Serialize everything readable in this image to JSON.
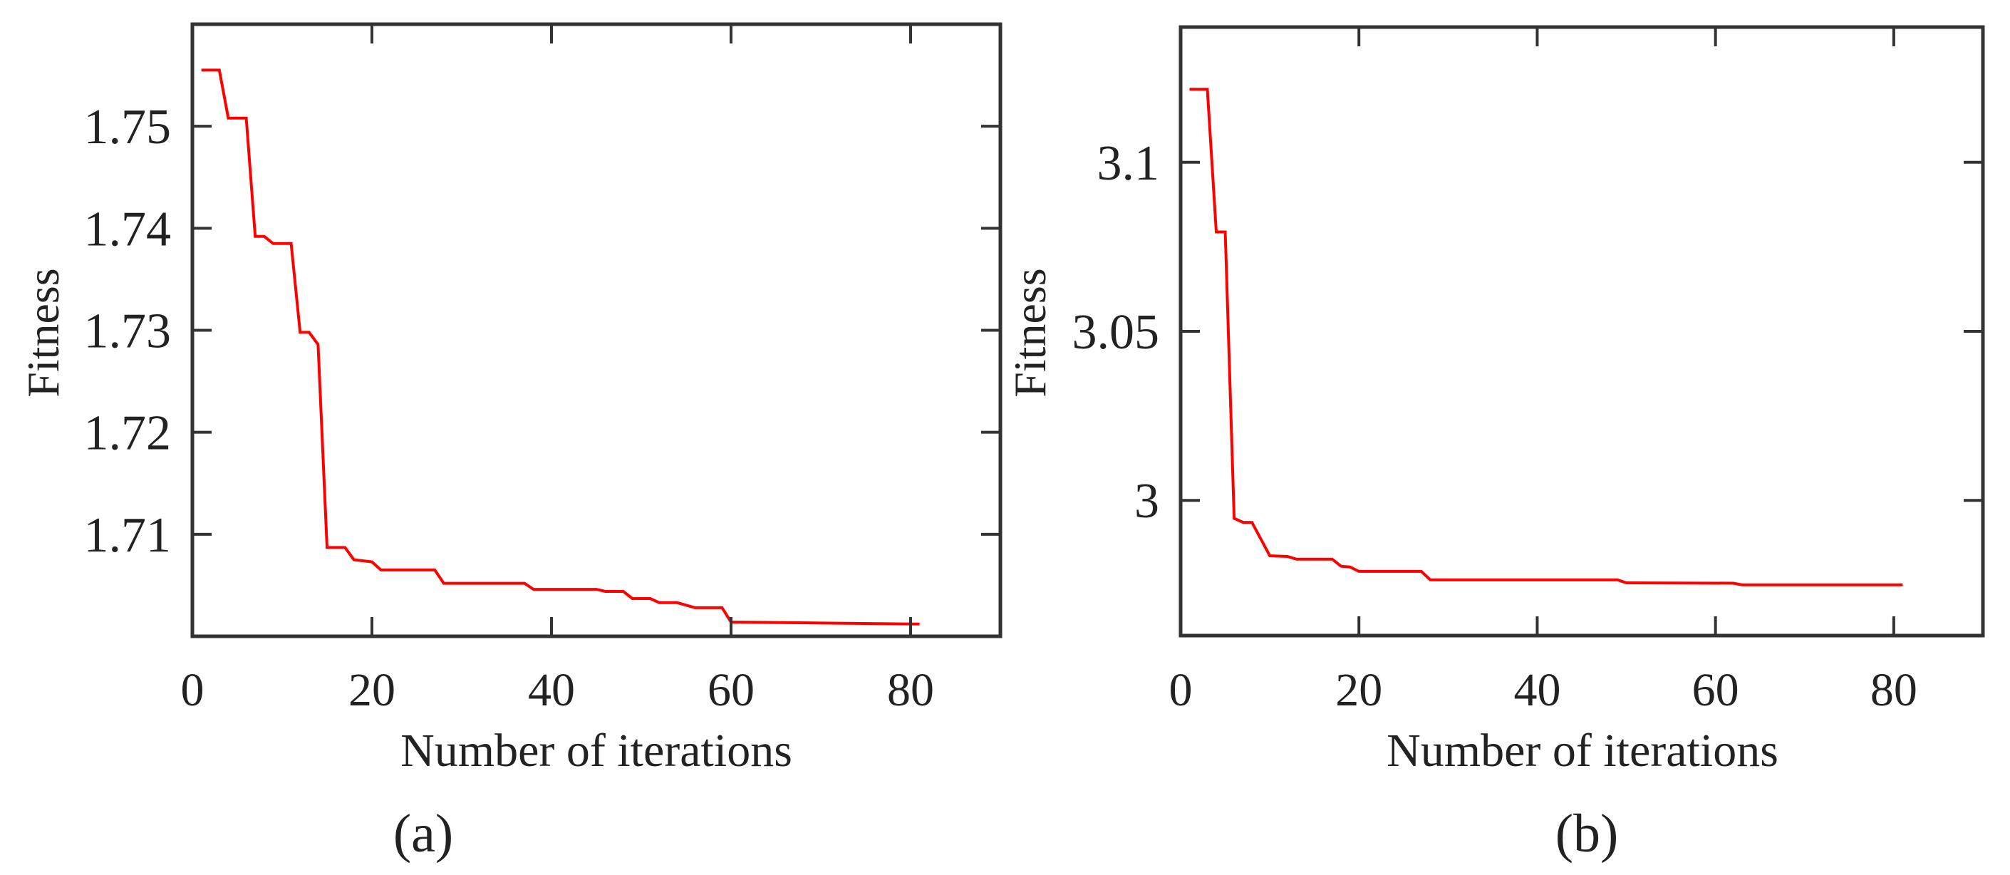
{
  "figure": {
    "panels": [
      {
        "id": "a",
        "caption": "(a)",
        "xlabel": "Number of iterations",
        "ylabel": "Fitness",
        "xticks": [
          "0",
          "20",
          "40",
          "60",
          "80"
        ],
        "yticks": [
          "1.71",
          "1.72",
          "1.73",
          "1.74",
          "1.75"
        ]
      },
      {
        "id": "b",
        "caption": "(b)",
        "xlabel": "Number of iterations",
        "ylabel": "Fitness",
        "xticks": [
          "0",
          "20",
          "40",
          "60",
          "80"
        ],
        "yticks": [
          "3",
          "3.05",
          "3.1"
        ]
      }
    ],
    "line_color": "#ff0000",
    "axis_color": "#333333"
  },
  "chart_data": [
    {
      "type": "line",
      "title": "(a)",
      "xlabel": "Number of iterations",
      "ylabel": "Fitness",
      "xlim": [
        0,
        90
      ],
      "ylim": [
        1.7,
        1.76
      ],
      "xticks": [
        0,
        20,
        40,
        60,
        80
      ],
      "yticks": [
        1.71,
        1.72,
        1.73,
        1.74,
        1.75
      ],
      "grid": false,
      "legend": null,
      "series": [
        {
          "name": "Fitness",
          "color": "#ff0000",
          "x": [
            1,
            3,
            4,
            6,
            7,
            8,
            9,
            11,
            12,
            13,
            14,
            15,
            17,
            18,
            20,
            21,
            27,
            28,
            37,
            38,
            45,
            46,
            48,
            49,
            51,
            52,
            54,
            56,
            59,
            60,
            70,
            81
          ],
          "y": [
            1.7555,
            1.7555,
            1.7508,
            1.7508,
            1.7392,
            1.7392,
            1.7385,
            1.7385,
            1.7298,
            1.7298,
            1.7286,
            1.7087,
            1.7087,
            1.7075,
            1.7073,
            1.7065,
            1.7065,
            1.7052,
            1.7052,
            1.7046,
            1.7046,
            1.7044,
            1.7044,
            1.7037,
            1.7037,
            1.7033,
            1.7033,
            1.7028,
            1.7028,
            1.7014,
            1.7013,
            1.7012
          ]
        }
      ]
    },
    {
      "type": "line",
      "title": "(b)",
      "xlabel": "Number of iterations",
      "ylabel": "Fitness",
      "xlim": [
        0,
        90
      ],
      "ylim": [
        2.96,
        3.14
      ],
      "xticks": [
        0,
        20,
        40,
        60,
        80
      ],
      "yticks": [
        3.0,
        3.05,
        3.1
      ],
      "grid": false,
      "legend": null,
      "series": [
        {
          "name": "Fitness",
          "color": "#ff0000",
          "x": [
            1,
            3,
            4,
            5,
            6,
            7,
            8,
            10,
            12,
            13,
            17,
            18,
            19,
            20,
            27,
            28,
            49,
            50,
            62,
            63,
            81
          ],
          "y": [
            3.1216,
            3.1216,
            3.0794,
            3.0794,
            2.9947,
            2.9935,
            2.9935,
            2.9836,
            2.9834,
            2.9826,
            2.9826,
            2.9805,
            2.9803,
            2.979,
            2.979,
            2.9765,
            2.9765,
            2.9756,
            2.9755,
            2.975,
            2.975
          ]
        }
      ]
    }
  ]
}
